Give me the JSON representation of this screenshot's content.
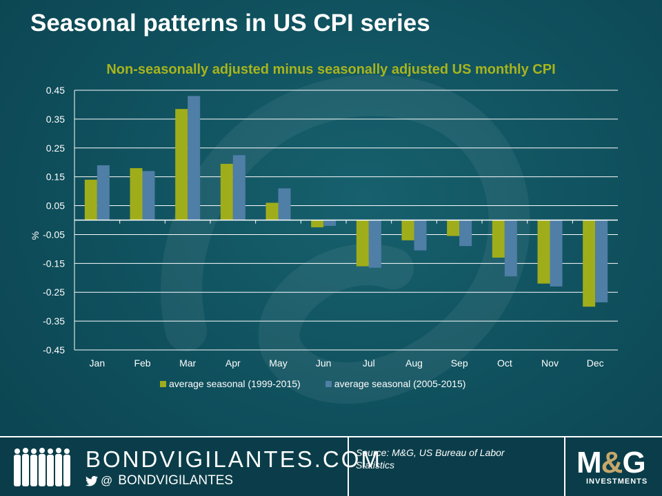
{
  "title": "Seasonal patterns in US CPI series",
  "colors": {
    "series1": "#a0ad1b",
    "series2": "#4f7ea6",
    "subtitle": "#a8b41c",
    "background": "#0f4f5c"
  },
  "chart_data": {
    "type": "bar",
    "title": "Non-seasonally adjusted minus seasonally adjusted US monthly CPI",
    "ylabel": "%",
    "ylim": [
      -0.45,
      0.45
    ],
    "yticks": [
      "0.45",
      "0.35",
      "0.25",
      "0.15",
      "0.05",
      "-0.05",
      "-0.15",
      "-0.25",
      "-0.35",
      "-0.45"
    ],
    "categories": [
      "Jan",
      "Feb",
      "Mar",
      "Apr",
      "May",
      "Jun",
      "Jul",
      "Aug",
      "Sep",
      "Oct",
      "Nov",
      "Dec"
    ],
    "series": [
      {
        "name": "average seasonal (1999-2015)",
        "values": [
          0.14,
          0.18,
          0.385,
          0.195,
          0.06,
          -0.025,
          -0.16,
          -0.07,
          -0.055,
          -0.13,
          -0.22,
          -0.3
        ]
      },
      {
        "name": "average seasonal (2005-2015)",
        "values": [
          0.19,
          0.17,
          0.43,
          0.225,
          0.11,
          -0.02,
          -0.165,
          -0.105,
          -0.09,
          -0.195,
          -0.23,
          -0.285
        ]
      }
    ],
    "grid": true,
    "legend": "bottom"
  },
  "footer": {
    "brand": "BONDVIGILANTES.COM",
    "handle_prefix": "@",
    "handle": "BONDVIGILANTES",
    "source": "Source: M&G, US Bureau of Labor Statistics",
    "logo_left": "M",
    "logo_amp": "&",
    "logo_right": "G",
    "logo_sub": "INVESTMENTS"
  }
}
